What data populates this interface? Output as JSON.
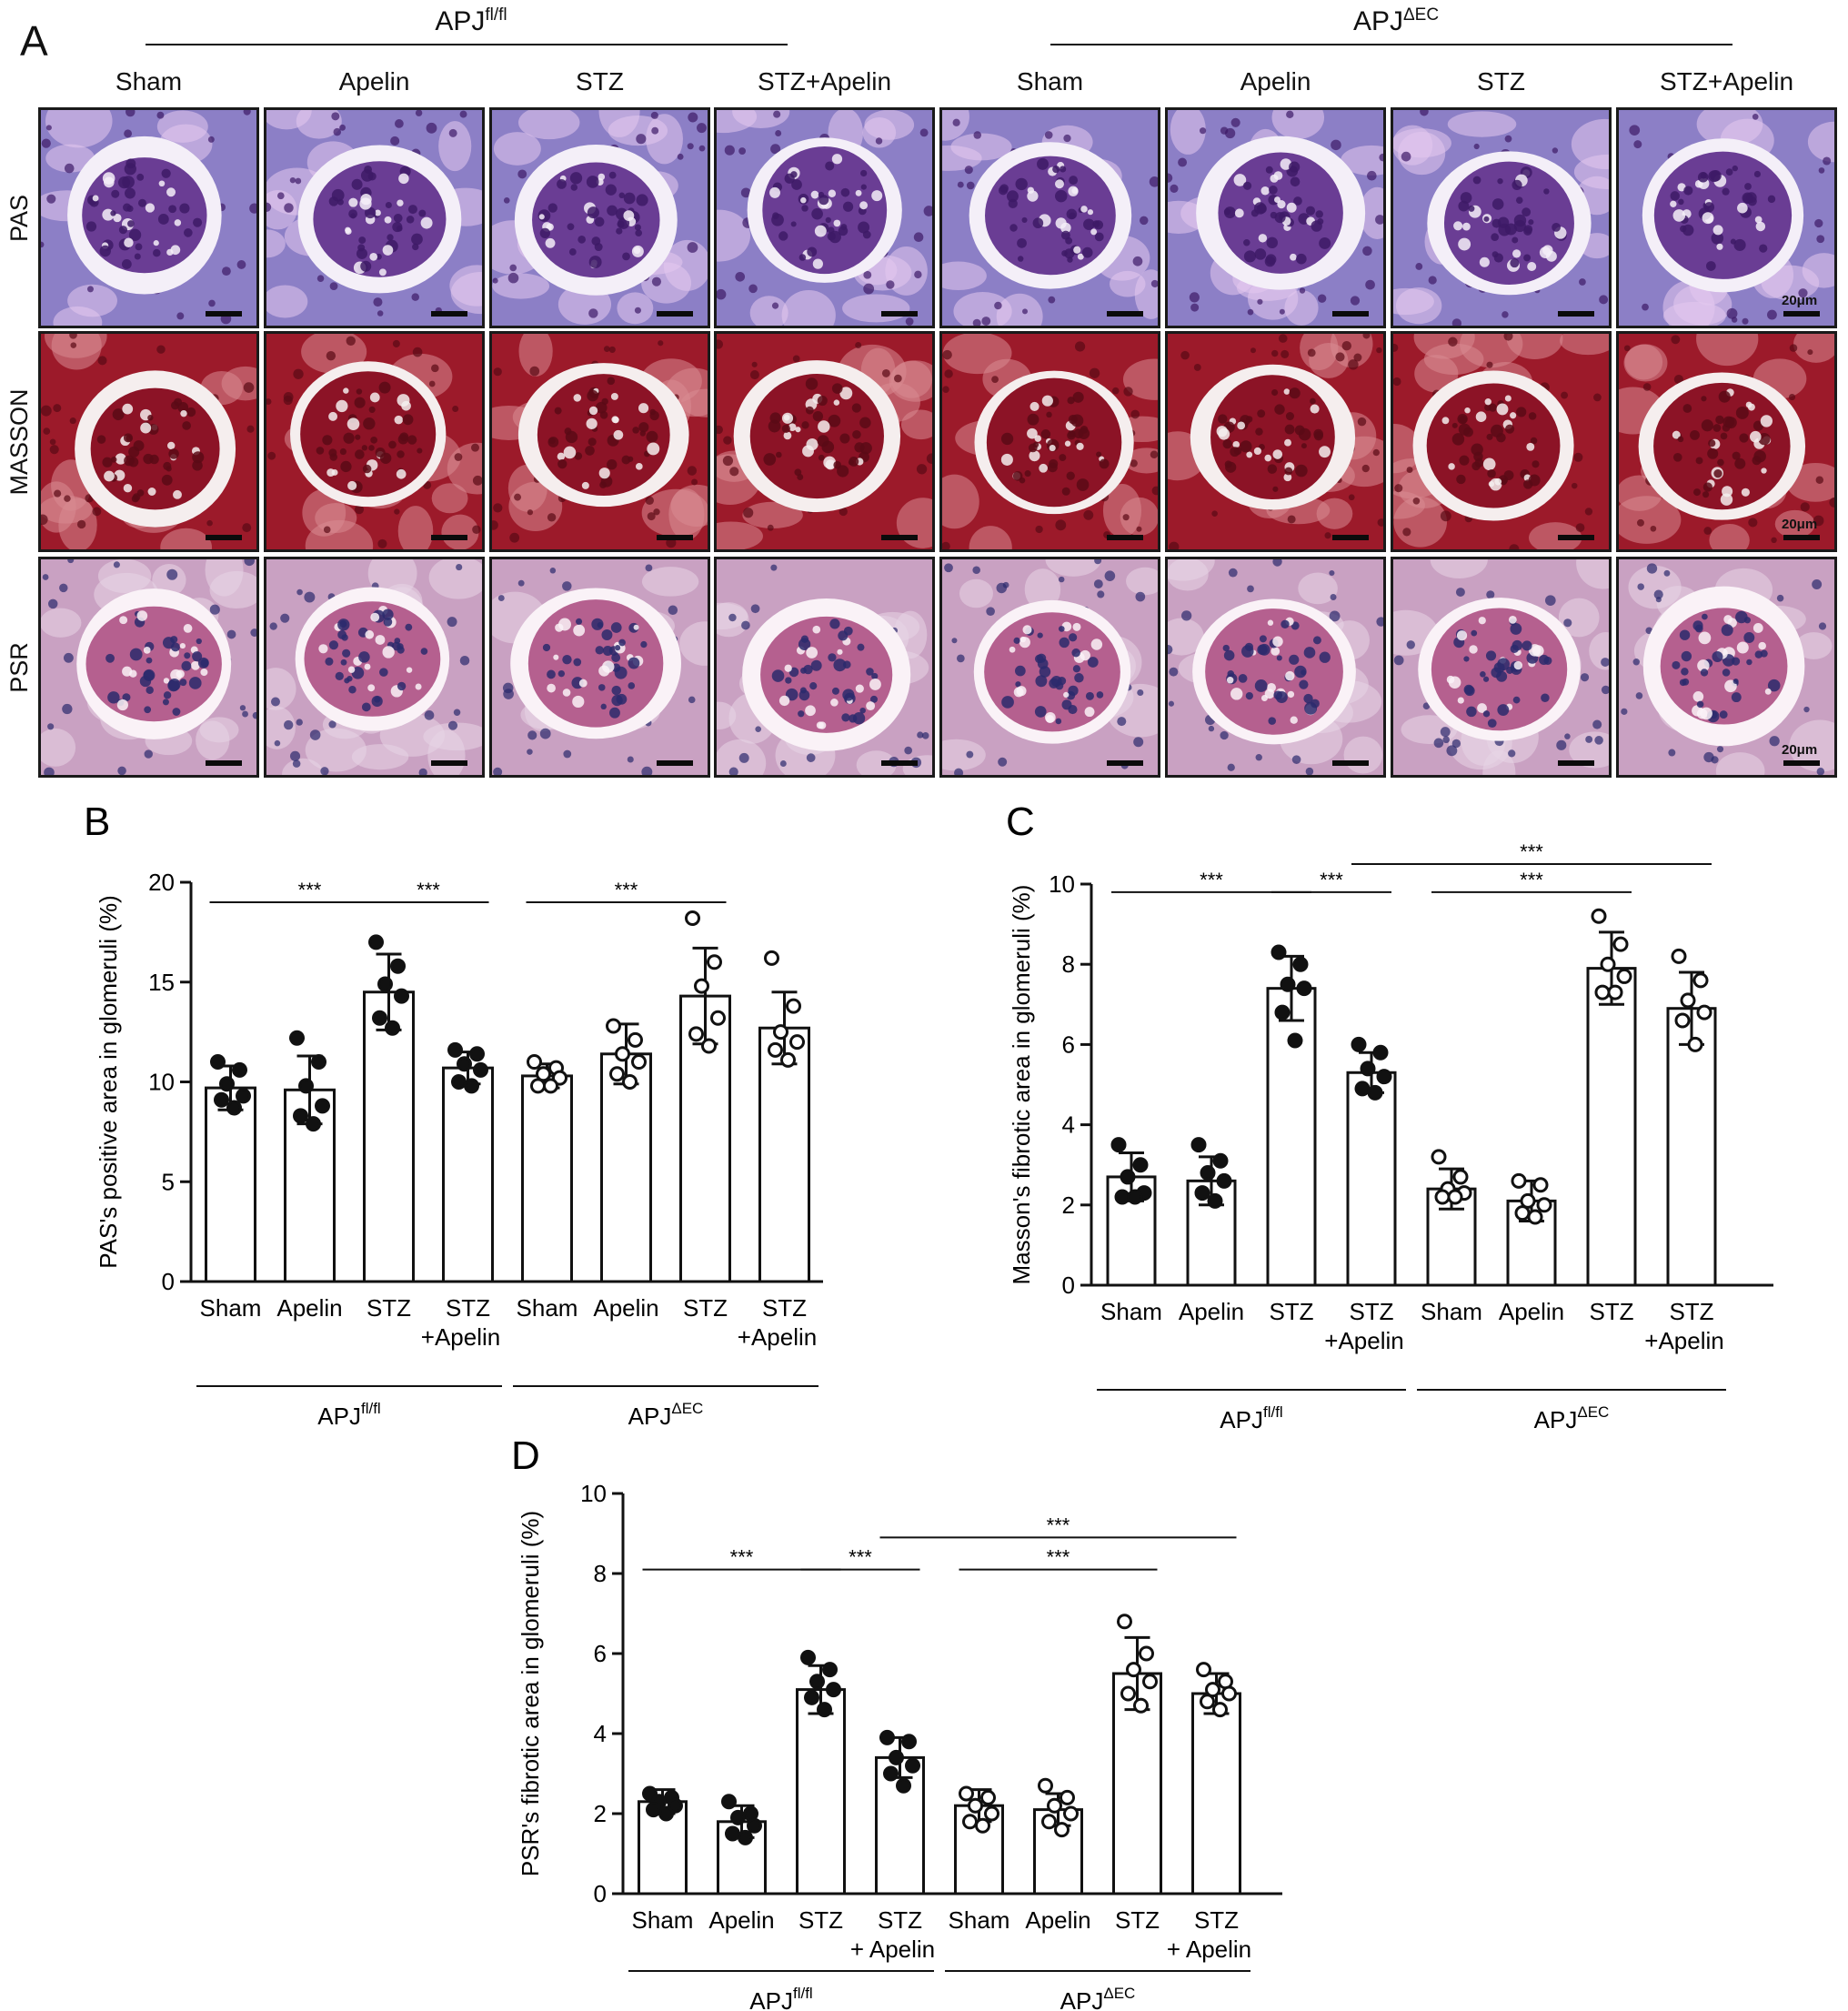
{
  "panel_a": {
    "letter": "A",
    "groups": [
      {
        "base": "APJ",
        "sup": "fl/fl"
      },
      {
        "base": "APJ",
        "sup": "ΔEC"
      }
    ],
    "column_headers": [
      "Sham",
      "Apelin",
      "STZ",
      "STZ+Apelin",
      "Sham",
      "Apelin",
      "STZ",
      "STZ+Apelin"
    ],
    "stains": [
      {
        "label": "PAS",
        "bg": "#8c7fc6",
        "cell": "#e3c8ee",
        "nuclei": "#3d1a66",
        "tuft": "#6a3d94",
        "ring": "#f4eff8"
      },
      {
        "label": "MASSON",
        "bg": "#9c1a2a",
        "cell": "#d98b92",
        "nuclei": "#5a0a16",
        "tuft": "#8c1326",
        "ring": "#f5eeee"
      },
      {
        "label": "PSR",
        "bg": "#c9a1c2",
        "cell": "#e8d5e6",
        "nuclei": "#2b2a6c",
        "tuft": "#b5608f",
        "ring": "#faf2f7"
      }
    ],
    "scale_label": "20μm"
  },
  "chart_data": [
    {
      "type": "bar",
      "panel": "B",
      "ylabel": "PAS's positive area in glomeruli (%)",
      "ylim": [
        0,
        20
      ],
      "yticks": [
        0,
        5,
        10,
        15,
        20
      ],
      "categories": [
        "Sham",
        "Apelin",
        "STZ",
        "STZ\n+Apelin",
        "Sham",
        "Apelin",
        "STZ",
        "STZ\n+Apelin"
      ],
      "groups": [
        {
          "base": "APJ",
          "sup": "fl/fl"
        },
        {
          "base": "APJ",
          "sup": "ΔEC"
        }
      ],
      "values": [
        9.7,
        9.6,
        14.5,
        10.7,
        10.3,
        11.4,
        14.3,
        12.7
      ],
      "errors": [
        1.1,
        1.7,
        1.9,
        0.8,
        0.6,
        1.5,
        2.4,
        1.8
      ],
      "points": [
        [
          11.0,
          10.6,
          9.9,
          9.3,
          9.1,
          8.7
        ],
        [
          12.2,
          11.0,
          9.8,
          8.8,
          8.3,
          7.9
        ],
        [
          17.0,
          15.8,
          14.9,
          14.3,
          13.2,
          12.7
        ],
        [
          11.6,
          11.4,
          10.9,
          10.6,
          10.0,
          9.8
        ],
        [
          11.0,
          10.7,
          10.4,
          10.2,
          9.8,
          9.8
        ],
        [
          12.8,
          12.1,
          11.4,
          11.0,
          10.4,
          10.0
        ],
        [
          18.2,
          16.0,
          14.8,
          13.2,
          12.4,
          11.8
        ],
        [
          16.2,
          13.8,
          12.5,
          12.0,
          11.6,
          11.1
        ]
      ],
      "filled": [
        true,
        true,
        true,
        true,
        false,
        false,
        false,
        false
      ],
      "significance": [
        {
          "from": 1,
          "to": 3,
          "y": 19.0,
          "label": "***"
        },
        {
          "from": 3,
          "to": 4,
          "y": 19.0,
          "label": "***"
        },
        {
          "from": 5,
          "to": 7,
          "y": 19.0,
          "label": "***"
        }
      ]
    },
    {
      "type": "bar",
      "panel": "C",
      "ylabel": "Masson's fibrotic area in glomeruli (%)",
      "ylim": [
        0,
        10
      ],
      "yticks": [
        0,
        2,
        4,
        6,
        8,
        10
      ],
      "categories": [
        "Sham",
        "Apelin",
        "STZ",
        "STZ\n+Apelin",
        "Sham",
        "Apelin",
        "STZ",
        "STZ\n+Apelin"
      ],
      "groups": [
        {
          "base": "APJ",
          "sup": "fl/fl"
        },
        {
          "base": "APJ",
          "sup": "ΔEC"
        }
      ],
      "values": [
        2.7,
        2.6,
        7.4,
        5.3,
        2.4,
        2.1,
        7.9,
        6.9
      ],
      "errors": [
        0.6,
        0.6,
        0.8,
        0.5,
        0.5,
        0.5,
        0.9,
        0.9
      ],
      "points": [
        [
          3.5,
          3.0,
          2.7,
          2.3,
          2.2,
          2.2
        ],
        [
          3.5,
          3.1,
          2.8,
          2.6,
          2.3,
          2.1
        ],
        [
          8.3,
          8.0,
          7.5,
          7.4,
          6.8,
          6.1
        ],
        [
          6.0,
          5.8,
          5.4,
          5.2,
          4.9,
          4.8
        ],
        [
          3.2,
          2.7,
          2.4,
          2.3,
          2.2,
          2.2
        ],
        [
          2.6,
          2.5,
          2.1,
          2.0,
          1.8,
          1.7
        ],
        [
          9.2,
          8.5,
          8.0,
          7.7,
          7.3,
          7.3
        ],
        [
          8.2,
          7.6,
          7.1,
          6.8,
          6.6,
          6.0
        ]
      ],
      "filled": [
        true,
        true,
        true,
        true,
        false,
        false,
        false,
        false
      ],
      "significance": [
        {
          "from": 1,
          "to": 3,
          "y": 9.8,
          "label": "***"
        },
        {
          "from": 3,
          "to": 4,
          "y": 9.8,
          "label": "***"
        },
        {
          "from": 5,
          "to": 7,
          "y": 9.8,
          "label": "***"
        },
        {
          "from": 4,
          "to": 8,
          "y": 10.5,
          "label": "***"
        }
      ]
    },
    {
      "type": "bar",
      "panel": "D",
      "ylabel": "PSR's fibrotic area in glomeruli (%)",
      "ylim": [
        0,
        10
      ],
      "yticks": [
        0,
        2,
        4,
        6,
        8,
        10
      ],
      "categories": [
        "Sham",
        "Apelin",
        "STZ",
        "STZ\n+ Apelin",
        "Sham",
        "Apelin",
        "STZ",
        "STZ\n+ Apelin"
      ],
      "groups": [
        {
          "base": "APJ",
          "sup": "fl/fl"
        },
        {
          "base": "APJ",
          "sup": "ΔEC"
        }
      ],
      "values": [
        2.3,
        1.8,
        5.1,
        3.4,
        2.2,
        2.1,
        5.5,
        5.0
      ],
      "errors": [
        0.3,
        0.4,
        0.6,
        0.5,
        0.4,
        0.4,
        0.9,
        0.5
      ],
      "points": [
        [
          2.5,
          2.4,
          2.3,
          2.2,
          2.1,
          2.0
        ],
        [
          2.3,
          2.0,
          1.9,
          1.7,
          1.5,
          1.4
        ],
        [
          5.9,
          5.6,
          5.3,
          5.1,
          4.9,
          4.6
        ],
        [
          3.9,
          3.8,
          3.4,
          3.2,
          3.0,
          2.7
        ],
        [
          2.5,
          2.4,
          2.2,
          2.0,
          1.8,
          1.7
        ],
        [
          2.7,
          2.4,
          2.2,
          2.0,
          1.8,
          1.6
        ],
        [
          6.8,
          6.0,
          5.6,
          5.3,
          5.0,
          4.7
        ],
        [
          5.6,
          5.3,
          5.1,
          5.0,
          4.8,
          4.6
        ]
      ],
      "filled": [
        true,
        true,
        true,
        true,
        false,
        false,
        false,
        false
      ],
      "significance": [
        {
          "from": 1,
          "to": 3,
          "y": 8.1,
          "label": "***"
        },
        {
          "from": 3,
          "to": 4,
          "y": 8.1,
          "label": "***"
        },
        {
          "from": 5,
          "to": 7,
          "y": 8.1,
          "label": "***"
        },
        {
          "from": 4,
          "to": 8,
          "y": 8.9,
          "label": "***"
        }
      ]
    }
  ]
}
